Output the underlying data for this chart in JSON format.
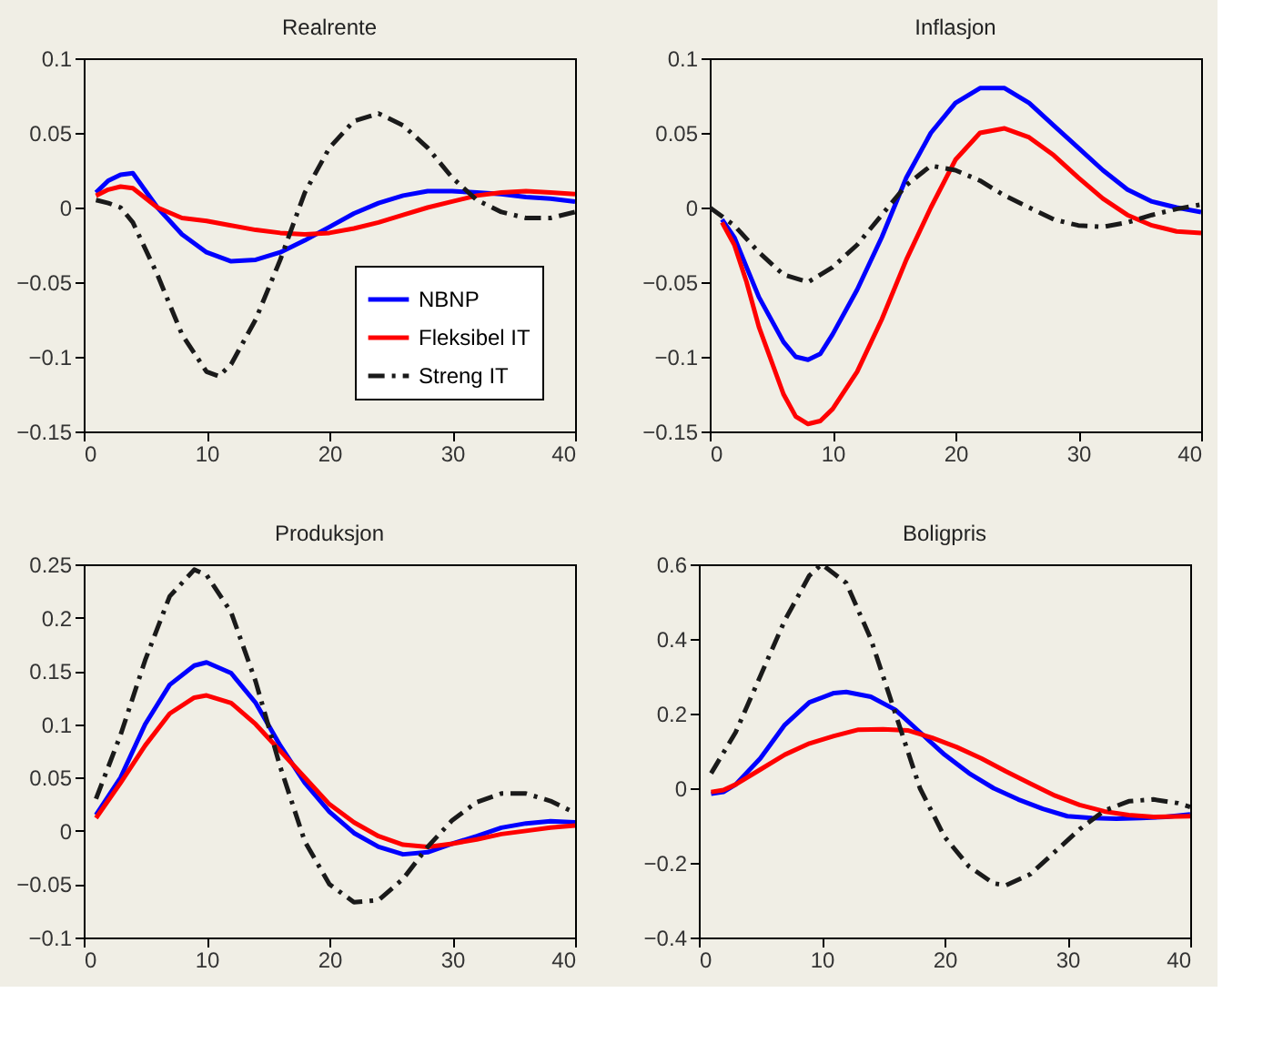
{
  "chart_data": [
    {
      "type": "line",
      "title": "Realrente",
      "xlim": [
        0,
        40
      ],
      "xticks": [
        0,
        10,
        20,
        30,
        40
      ],
      "ylim": [
        -0.15,
        0.1
      ],
      "yticks": [
        -0.15,
        -0.1,
        -0.05,
        0,
        0.05,
        0.1
      ],
      "grid": false,
      "legend": "bottom right",
      "series": [
        {
          "name": "NBNP",
          "color": "#0000ff",
          "line_style": "solid",
          "x": [
            1,
            2,
            3,
            4,
            6,
            8,
            10,
            12,
            14,
            16,
            18,
            20,
            22,
            24,
            26,
            28,
            30,
            32,
            34,
            36,
            38,
            40
          ],
          "values": [
            0.01,
            0.018,
            0.022,
            0.023,
            0.0,
            -0.018,
            -0.03,
            -0.036,
            -0.035,
            -0.03,
            -0.022,
            -0.013,
            -0.004,
            0.003,
            0.008,
            0.011,
            0.011,
            0.01,
            0.009,
            0.007,
            0.006,
            0.004
          ]
        },
        {
          "name": "Fleksibel IT",
          "color": "#ff0000",
          "line_style": "solid",
          "x": [
            1,
            2,
            3,
            4,
            6,
            8,
            10,
            12,
            14,
            16,
            18,
            20,
            22,
            24,
            26,
            28,
            30,
            32,
            34,
            36,
            38,
            40
          ],
          "values": [
            0.008,
            0.012,
            0.014,
            0.013,
            0.0,
            -0.007,
            -0.009,
            -0.012,
            -0.015,
            -0.017,
            -0.018,
            -0.017,
            -0.014,
            -0.01,
            -0.005,
            0.0,
            0.004,
            0.008,
            0.01,
            0.011,
            0.01,
            0.009
          ]
        },
        {
          "name": "Streng IT",
          "color": "#1a1a1a",
          "line_style": "dashed",
          "x": [
            1,
            2,
            3,
            4,
            6,
            8,
            10,
            11,
            12,
            14,
            16,
            18,
            20,
            22,
            24,
            26,
            28,
            30,
            32,
            34,
            36,
            38,
            40
          ],
          "values": [
            0.005,
            0.003,
            0.0,
            -0.01,
            -0.045,
            -0.085,
            -0.11,
            -0.113,
            -0.105,
            -0.075,
            -0.035,
            0.01,
            0.04,
            0.058,
            0.063,
            0.055,
            0.04,
            0.02,
            0.005,
            -0.003,
            -0.007,
            -0.007,
            -0.003
          ]
        }
      ]
    },
    {
      "type": "line",
      "title": "Inflasjon",
      "xlim": [
        0,
        40
      ],
      "xticks": [
        0,
        10,
        20,
        30,
        40
      ],
      "ylim": [
        -0.15,
        0.1
      ],
      "yticks": [
        -0.15,
        -0.1,
        -0.05,
        0,
        0.05,
        0.1
      ],
      "grid": false,
      "series": [
        {
          "color": "#0000ff",
          "line_style": "solid",
          "x": [
            1,
            2,
            3,
            4,
            6,
            7,
            8,
            9,
            10,
            12,
            14,
            16,
            18,
            20,
            22,
            24,
            26,
            28,
            30,
            32,
            34,
            36,
            38,
            40
          ],
          "values": [
            -0.008,
            -0.02,
            -0.04,
            -0.06,
            -0.09,
            -0.1,
            -0.102,
            -0.098,
            -0.085,
            -0.055,
            -0.02,
            0.02,
            0.05,
            0.07,
            0.08,
            0.08,
            0.07,
            0.055,
            0.04,
            0.025,
            0.012,
            0.004,
            0.0,
            -0.003
          ]
        },
        {
          "color": "#ff0000",
          "line_style": "solid",
          "x": [
            1,
            2,
            3,
            4,
            6,
            7,
            8,
            9,
            10,
            12,
            14,
            16,
            18,
            20,
            22,
            24,
            26,
            28,
            30,
            32,
            34,
            36,
            38,
            40
          ],
          "values": [
            -0.01,
            -0.025,
            -0.05,
            -0.08,
            -0.125,
            -0.14,
            -0.145,
            -0.143,
            -0.135,
            -0.11,
            -0.075,
            -0.035,
            0.0,
            0.032,
            0.05,
            0.053,
            0.047,
            0.035,
            0.02,
            0.006,
            -0.005,
            -0.012,
            -0.016,
            -0.017
          ]
        },
        {
          "color": "#1a1a1a",
          "line_style": "dashed",
          "x": [
            0,
            2,
            4,
            6,
            8,
            10,
            12,
            14,
            16,
            18,
            20,
            22,
            24,
            26,
            28,
            30,
            32,
            34,
            36,
            38,
            40
          ],
          "values": [
            0.0,
            -0.012,
            -0.03,
            -0.045,
            -0.05,
            -0.04,
            -0.025,
            -0.005,
            0.015,
            0.028,
            0.025,
            0.018,
            0.008,
            0.0,
            -0.008,
            -0.012,
            -0.013,
            -0.01,
            -0.005,
            -0.001,
            0.002
          ]
        }
      ]
    },
    {
      "type": "line",
      "title": "Produksjon",
      "xlim": [
        0,
        40
      ],
      "xticks": [
        0,
        10,
        20,
        30,
        40
      ],
      "ylim": [
        -0.1,
        0.25
      ],
      "yticks": [
        -0.1,
        -0.05,
        0,
        0.05,
        0.1,
        0.15,
        0.2,
        0.25
      ],
      "grid": false,
      "series": [
        {
          "color": "#0000ff",
          "line_style": "solid",
          "x": [
            1,
            3,
            5,
            7,
            9,
            10,
            12,
            14,
            16,
            18,
            20,
            22,
            24,
            26,
            28,
            30,
            32,
            34,
            36,
            38,
            40
          ],
          "values": [
            0.015,
            0.05,
            0.1,
            0.137,
            0.155,
            0.158,
            0.148,
            0.12,
            0.08,
            0.045,
            0.018,
            -0.002,
            -0.015,
            -0.022,
            -0.02,
            -0.012,
            -0.005,
            0.003,
            0.007,
            0.009,
            0.008
          ]
        },
        {
          "color": "#ff0000",
          "line_style": "solid",
          "x": [
            1,
            3,
            5,
            7,
            9,
            10,
            12,
            14,
            16,
            18,
            20,
            22,
            24,
            26,
            28,
            30,
            32,
            34,
            36,
            38,
            40
          ],
          "values": [
            0.012,
            0.045,
            0.08,
            0.11,
            0.125,
            0.127,
            0.12,
            0.1,
            0.075,
            0.05,
            0.025,
            0.008,
            -0.005,
            -0.013,
            -0.015,
            -0.012,
            -0.008,
            -0.003,
            0.0,
            0.003,
            0.005
          ]
        },
        {
          "color": "#1a1a1a",
          "line_style": "dashed",
          "x": [
            1,
            3,
            5,
            7,
            9,
            10,
            12,
            14,
            16,
            18,
            20,
            22,
            24,
            26,
            28,
            30,
            32,
            34,
            36,
            38,
            40
          ],
          "values": [
            0.03,
            0.09,
            0.16,
            0.22,
            0.245,
            0.24,
            0.205,
            0.14,
            0.06,
            -0.01,
            -0.05,
            -0.067,
            -0.065,
            -0.045,
            -0.015,
            0.01,
            0.027,
            0.035,
            0.035,
            0.028,
            0.017
          ]
        }
      ]
    },
    {
      "type": "line",
      "title": "Boligpris",
      "xlim": [
        0,
        40
      ],
      "xticks": [
        0,
        10,
        20,
        30,
        40
      ],
      "ylim": [
        -0.4,
        0.6
      ],
      "yticks": [
        -0.4,
        -0.2,
        0,
        0.2,
        0.4,
        0.6
      ],
      "grid": false,
      "series": [
        {
          "color": "#0000ff",
          "line_style": "solid",
          "x": [
            1,
            2,
            3,
            5,
            7,
            9,
            11,
            12,
            14,
            16,
            18,
            20,
            22,
            24,
            26,
            28,
            30,
            32,
            34,
            36,
            38,
            40
          ],
          "values": [
            -0.015,
            -0.01,
            0.01,
            0.08,
            0.17,
            0.23,
            0.255,
            0.258,
            0.245,
            0.21,
            0.15,
            0.09,
            0.04,
            0.0,
            -0.03,
            -0.055,
            -0.075,
            -0.08,
            -0.082,
            -0.08,
            -0.077,
            -0.07
          ]
        },
        {
          "color": "#ff0000",
          "line_style": "solid",
          "x": [
            1,
            2,
            3,
            5,
            7,
            9,
            11,
            13,
            15,
            17,
            19,
            21,
            23,
            25,
            27,
            29,
            31,
            33,
            35,
            37,
            40
          ],
          "values": [
            -0.01,
            -0.005,
            0.01,
            0.05,
            0.09,
            0.12,
            0.14,
            0.157,
            0.158,
            0.155,
            0.135,
            0.11,
            0.08,
            0.045,
            0.012,
            -0.02,
            -0.045,
            -0.062,
            -0.072,
            -0.077,
            -0.075
          ]
        },
        {
          "color": "#1a1a1a",
          "line_style": "dashed",
          "x": [
            1,
            3,
            5,
            7,
            9,
            10,
            12,
            14,
            16,
            18,
            20,
            22,
            24,
            25,
            27,
            29,
            31,
            33,
            35,
            37,
            39,
            40
          ],
          "values": [
            0.04,
            0.15,
            0.3,
            0.45,
            0.57,
            0.6,
            0.55,
            0.4,
            0.2,
            0.0,
            -0.13,
            -0.21,
            -0.255,
            -0.26,
            -0.23,
            -0.17,
            -0.11,
            -0.06,
            -0.035,
            -0.03,
            -0.04,
            -0.05
          ]
        }
      ]
    }
  ]
}
